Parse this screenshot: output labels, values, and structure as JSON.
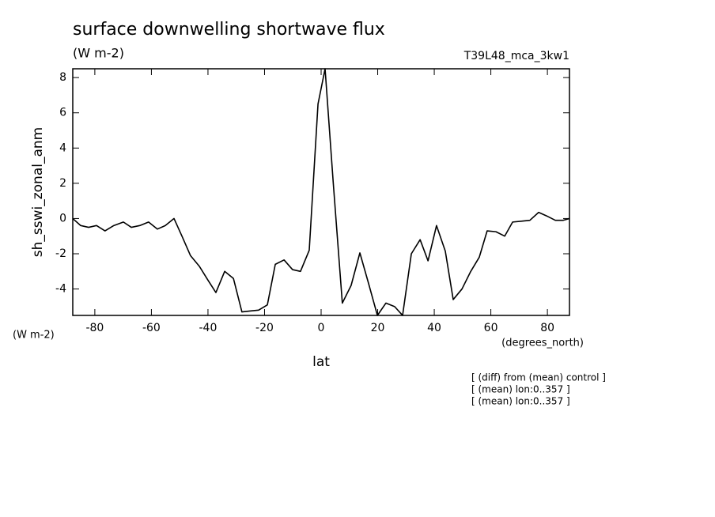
{
  "chart_data": {
    "type": "line",
    "title": "surface downwelling shortwave flux",
    "subtitle": "(W m-2)",
    "run_label": "T39L48_mca_3kw1",
    "ylabel": "sh_sswi_zonal_anm",
    "y_units": "(W m-2)",
    "x_units": "(degrees_north)",
    "xlabel": "lat",
    "notes": [
      "[ (diff) from (mean) control ]",
      "[ (mean) lon:0..357 ]",
      "[ (mean) lon:0..357 ]"
    ],
    "x": [
      -87.8,
      -85.0,
      -82.2,
      -79.4,
      -76.4,
      -73.3,
      -69.9,
      -67.1,
      -64.1,
      -61.0,
      -57.9,
      -55.1,
      -52.0,
      -49.2,
      -46.2,
      -43.1,
      -40.0,
      -37.2,
      -34.1,
      -31.0,
      -28.0,
      -25.2,
      -22.1,
      -19.0,
      -16.2,
      -13.1,
      -10.1,
      -7.3,
      -4.2,
      -1.1,
      1.4,
      4.3,
      7.5,
      10.6,
      13.7,
      16.8,
      19.9,
      22.9,
      26.0,
      28.8,
      31.9,
      35.0,
      37.8,
      40.8,
      43.9,
      46.7,
      49.8,
      52.9,
      55.9,
      58.7,
      61.8,
      64.9,
      67.7,
      70.8,
      73.8,
      76.9,
      79.7,
      82.8,
      85.6,
      87.8
    ],
    "series": [
      {
        "name": "sh_sswi_zonal_anm",
        "color": "#000000",
        "values": [
          0.0,
          -0.4,
          -0.5,
          -0.4,
          -0.7,
          -0.4,
          -0.2,
          -0.5,
          -0.4,
          -0.2,
          -0.6,
          -0.4,
          0.0,
          -1.0,
          -2.1,
          -2.7,
          -3.5,
          -4.2,
          -3.0,
          -3.4,
          -5.3,
          -5.25,
          -5.2,
          -4.9,
          -2.6,
          -2.35,
          -2.9,
          -3.0,
          -1.8,
          6.5,
          8.5,
          2.0,
          -4.8,
          -3.8,
          -1.95,
          -3.7,
          -5.5,
          -4.8,
          -5.0,
          -5.5,
          -2.0,
          -1.2,
          -2.4,
          -0.4,
          -1.85,
          -4.6,
          -4.0,
          -3.0,
          -2.2,
          -0.7,
          -0.75,
          -1.0,
          -0.2,
          -0.15,
          -0.1,
          0.35,
          0.15,
          -0.1,
          -0.1,
          0.0
        ]
      }
    ],
    "xlim": [
      -87.8,
      87.8
    ],
    "ylim": [
      -5.5,
      8.5
    ],
    "xticks": [
      -80,
      -60,
      -40,
      -20,
      0,
      20,
      40,
      60,
      80
    ],
    "yticks": [
      -4,
      -2,
      0,
      2,
      4,
      6,
      8
    ]
  }
}
